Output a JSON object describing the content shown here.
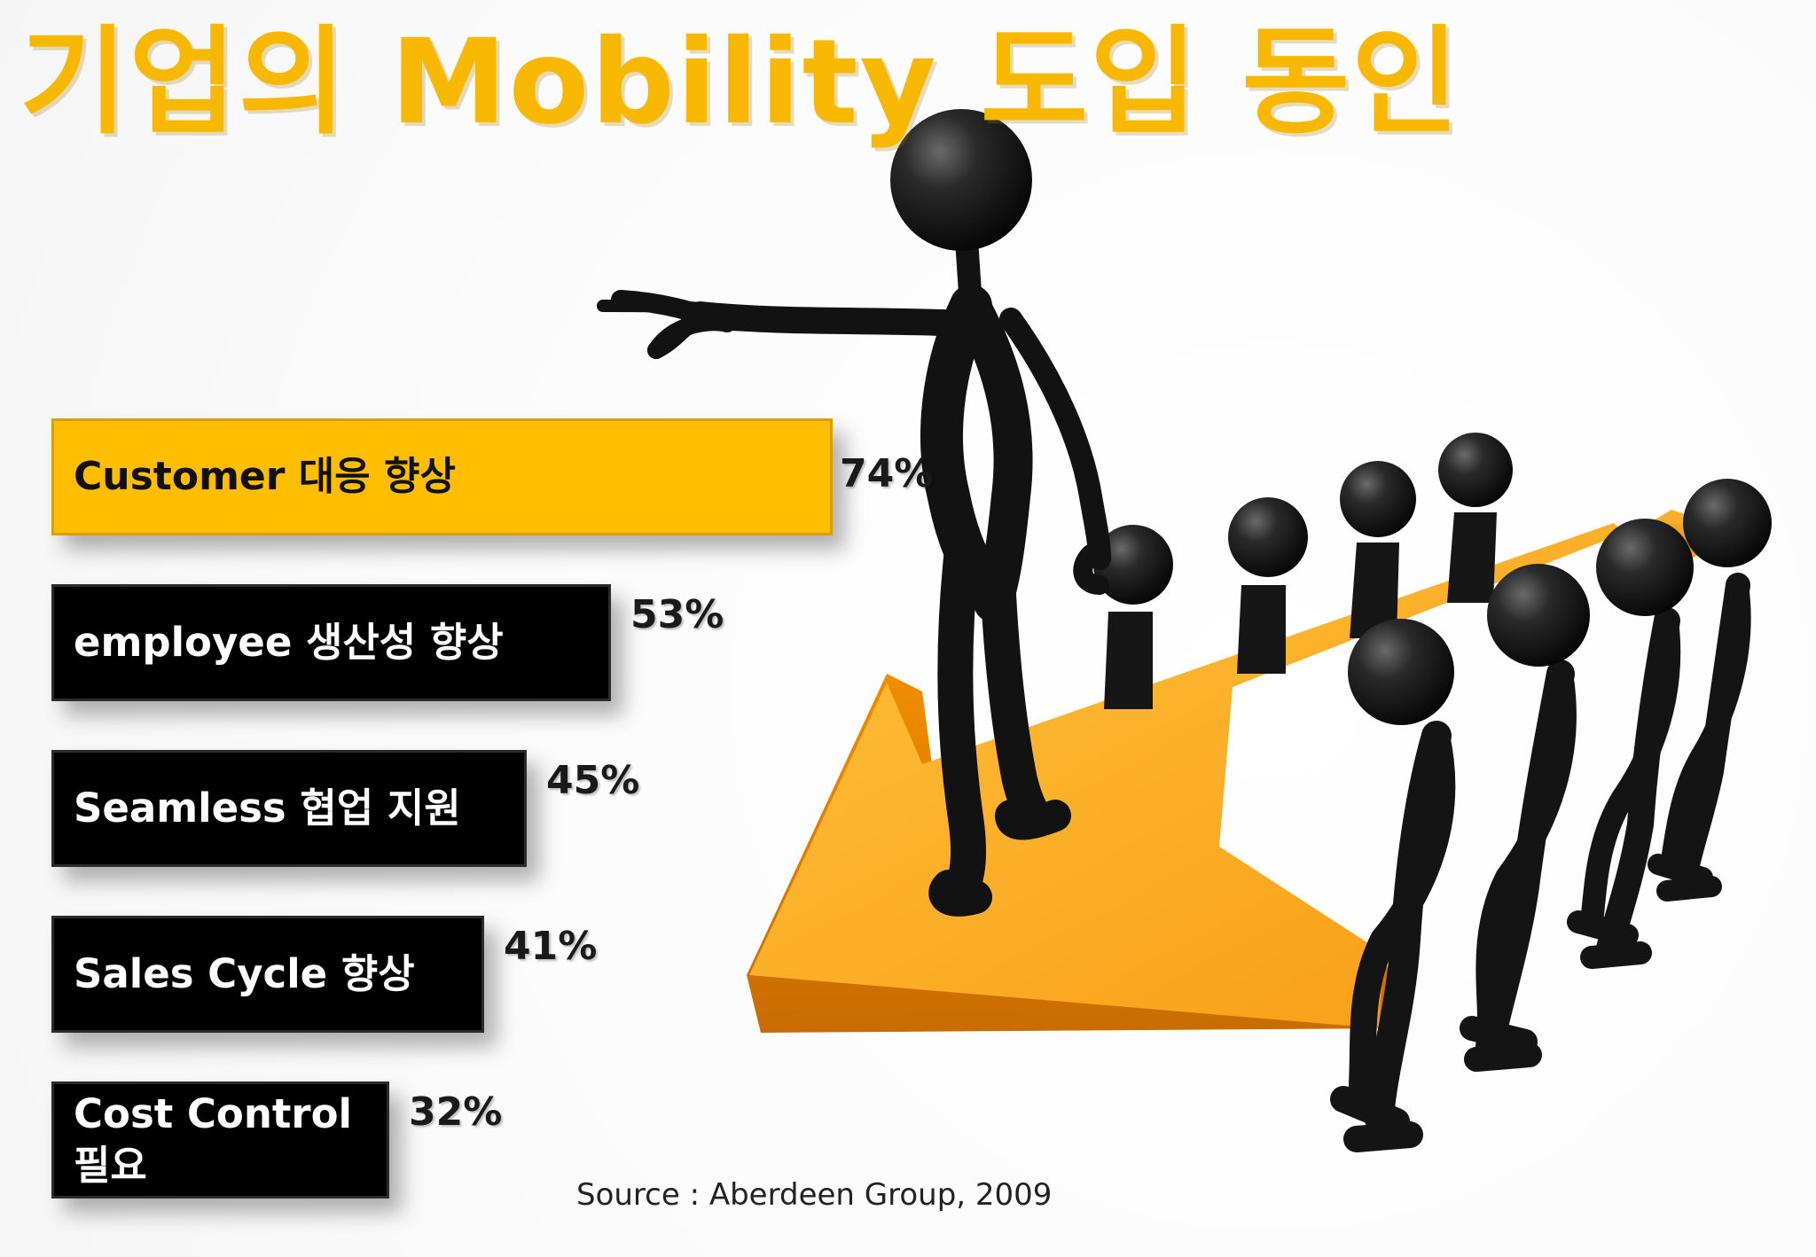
{
  "slide": {
    "title": "기업의 Mobility 도입 동인",
    "source": "Source : Aberdeen Group, 2009"
  },
  "illustration": {
    "description_icon": "stick-figure-leader-and-orange-arrow",
    "colors": {
      "figure": "#141414",
      "arrow_top": "#ffb52a",
      "arrow_side": "#e88a00"
    }
  },
  "colors": {
    "title": "#f9b800",
    "highlight_bar": "#ffbf00",
    "dark_bar": "#000000",
    "highlight_text": "#111111",
    "dark_text": "#ffffff"
  },
  "chart_data": {
    "type": "bar",
    "orientation": "horizontal",
    "categories": [
      "Customer 대응 향상",
      "employee 생산성 향상",
      "Seamless 협업 지원",
      "Sales Cycle 향상",
      "Cost Control 필요"
    ],
    "values": [
      74,
      53,
      45,
      41,
      32
    ],
    "value_labels": [
      "74%",
      "53%",
      "45%",
      "41%",
      "32%"
    ],
    "highlighted_index": 0,
    "title": "",
    "xlabel": "",
    "ylabel": "",
    "xlim": [
      0,
      100
    ],
    "grid": false,
    "legend": "none"
  }
}
